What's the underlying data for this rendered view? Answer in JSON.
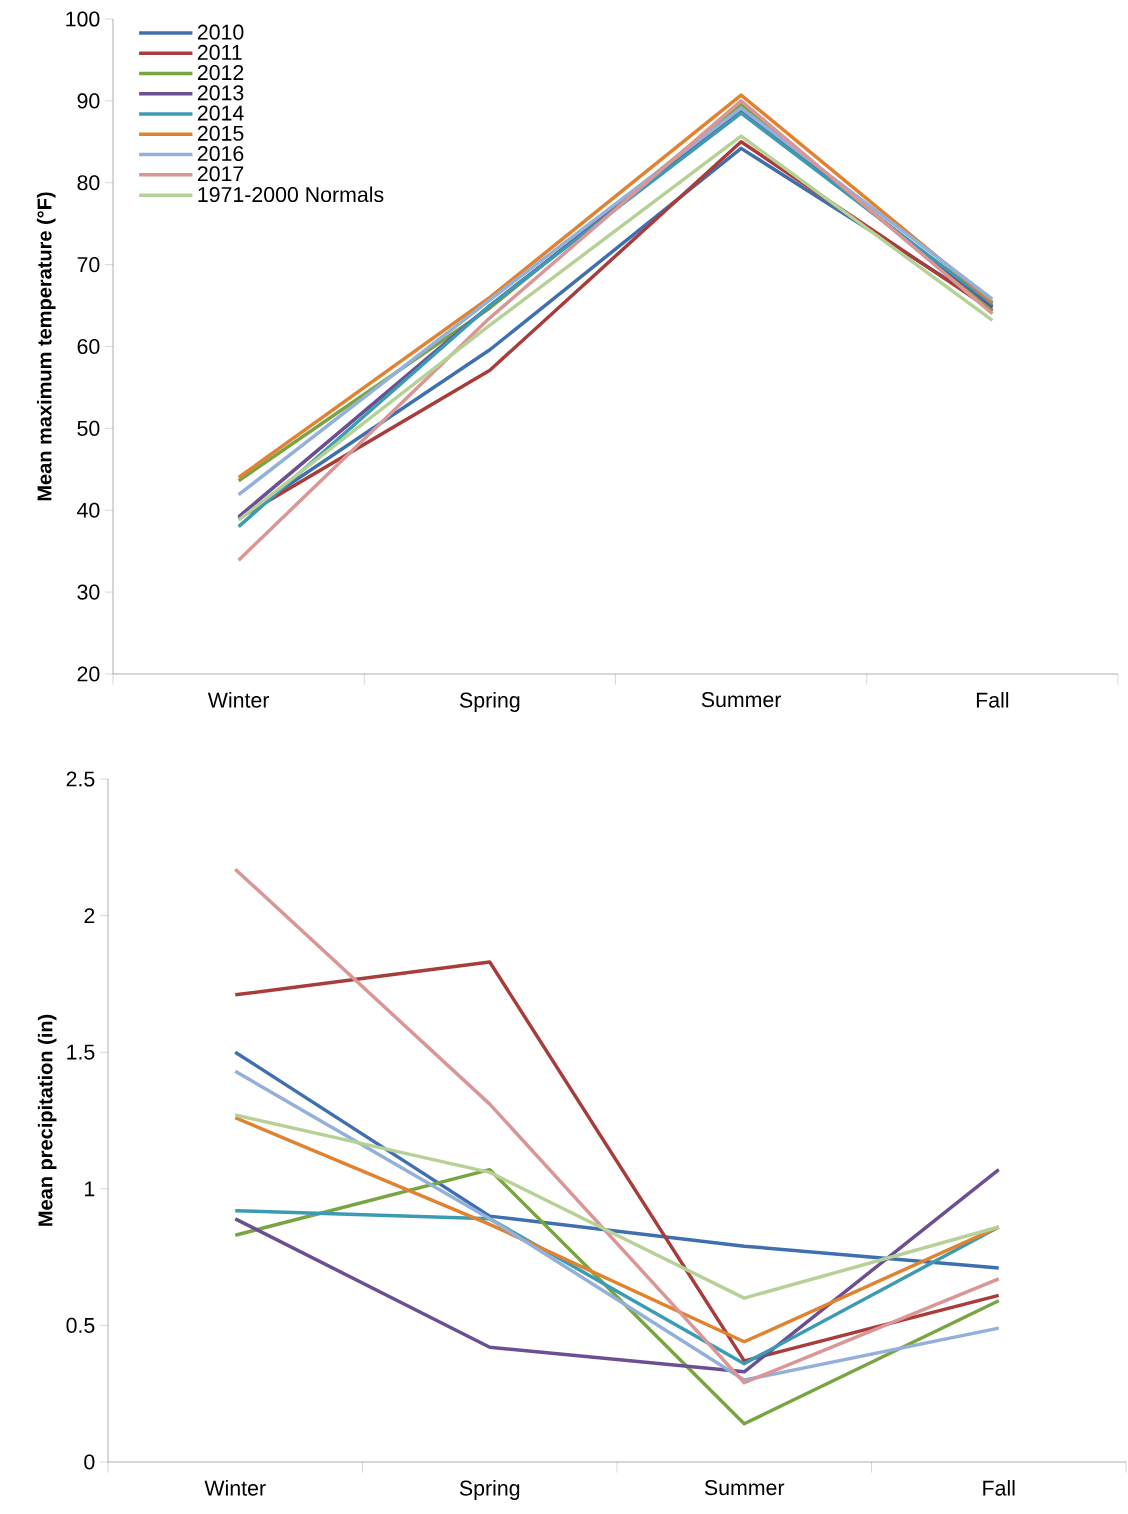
{
  "chart_data": [
    {
      "type": "line",
      "ylabel": "Mean maximum temperature (°F)",
      "categories": [
        "Winter",
        "Spring",
        "Summer",
        "Fall"
      ],
      "ylim": [
        20,
        100
      ],
      "yticks": [
        20,
        30,
        40,
        50,
        60,
        70,
        80,
        90,
        100
      ],
      "legend": "top left",
      "series": [
        {
          "name": "2010",
          "color": "#3f6fae",
          "values": [
            39.0,
            59.6,
            84.2,
            64.7
          ]
        },
        {
          "name": "2011",
          "color": "#a83c3a",
          "values": [
            39.0,
            57.1,
            85.0,
            64.4
          ]
        },
        {
          "name": "2012",
          "color": "#78a542",
          "values": [
            43.6,
            64.7,
            89.6,
            64.3
          ]
        },
        {
          "name": "2013",
          "color": "#6c4f93",
          "values": [
            39.2,
            65.0,
            88.9,
            64.9
          ]
        },
        {
          "name": "2014",
          "color": "#3b9bb3",
          "values": [
            38.0,
            65.0,
            88.5,
            65.2
          ]
        },
        {
          "name": "2015",
          "color": "#e0822f",
          "values": [
            44.0,
            66.0,
            90.7,
            65.4
          ]
        },
        {
          "name": "2016",
          "color": "#92b0d9",
          "values": [
            41.9,
            65.7,
            89.1,
            65.8
          ]
        },
        {
          "name": "2017",
          "color": "#da9595",
          "values": [
            33.9,
            63.5,
            90.0,
            64.0
          ]
        },
        {
          "name": "1971-2000 Normals",
          "color": "#b6d196",
          "values": [
            38.8,
            62.6,
            85.7,
            63.2
          ]
        }
      ]
    },
    {
      "type": "line",
      "ylabel": "Mean precipitation (in)",
      "categories": [
        "Winter",
        "Spring",
        "Summer",
        "Fall"
      ],
      "ylim": [
        0,
        2.5
      ],
      "yticks": [
        0,
        0.5,
        1,
        1.5,
        2,
        2.5
      ],
      "series": [
        {
          "color": "#3f6fae",
          "values": [
            1.5,
            0.9,
            0.79,
            0.71
          ]
        },
        {
          "color": "#a83c3a",
          "values": [
            1.71,
            1.83,
            0.37,
            0.61
          ]
        },
        {
          "color": "#78a542",
          "values": [
            0.83,
            1.07,
            0.14,
            0.59
          ]
        },
        {
          "color": "#6c4f93",
          "values": [
            0.89,
            0.42,
            0.33,
            1.07
          ]
        },
        {
          "color": "#3b9bb3",
          "values": [
            0.92,
            0.89,
            0.36,
            0.86
          ]
        },
        {
          "color": "#e0822f",
          "values": [
            1.26,
            0.87,
            0.44,
            0.86
          ]
        },
        {
          "color": "#92b0d9",
          "values": [
            1.43,
            0.89,
            0.3,
            0.49
          ]
        },
        {
          "color": "#da9595",
          "values": [
            2.17,
            1.31,
            0.29,
            0.67
          ]
        },
        {
          "color": "#b6d196",
          "values": [
            1.27,
            1.06,
            0.6,
            0.86
          ]
        }
      ]
    }
  ]
}
